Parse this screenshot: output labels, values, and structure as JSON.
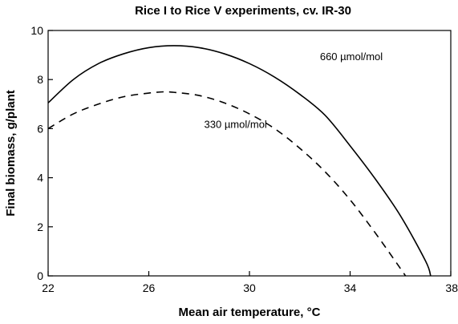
{
  "chart_data": {
    "type": "line",
    "title": "Rice I to Rice V experiments, cv. IR-30",
    "xlabel": "Mean air temperature, °C",
    "ylabel": "Final biomass, g/plant",
    "xlim": [
      22,
      38
    ],
    "ylim": [
      0,
      10
    ],
    "xticks": [
      22,
      26,
      30,
      34,
      38
    ],
    "yticks": [
      0,
      2,
      4,
      6,
      8,
      10
    ],
    "grid": false,
    "series": [
      {
        "name": "660 µmol/mol",
        "style": "solid",
        "color": "#000000",
        "x": [
          22,
          23,
          24,
          25,
          26,
          27,
          28,
          29,
          30,
          31,
          32,
          33,
          34,
          35,
          36,
          37,
          37.2
        ],
        "y": [
          7.05,
          8.0,
          8.65,
          9.05,
          9.3,
          9.38,
          9.3,
          9.05,
          8.65,
          8.1,
          7.4,
          6.55,
          5.3,
          3.95,
          2.45,
          0.6,
          0
        ]
      },
      {
        "name": "330 µmol/mol",
        "style": "dashed",
        "color": "#000000",
        "x": [
          22,
          23,
          24,
          25,
          26,
          26.6,
          27,
          28,
          29,
          30,
          31,
          32,
          33,
          34,
          35,
          36,
          36.2
        ],
        "y": [
          6.0,
          6.6,
          7.0,
          7.3,
          7.45,
          7.5,
          7.48,
          7.35,
          7.05,
          6.6,
          6.0,
          5.2,
          4.25,
          3.1,
          1.75,
          0.3,
          0
        ]
      }
    ],
    "annotations": [
      {
        "text": "660 µmol/mol",
        "x": 32.8,
        "y": 8.95
      },
      {
        "text": "330 µmol/mol",
        "x": 28.2,
        "y": 6.2
      }
    ]
  }
}
